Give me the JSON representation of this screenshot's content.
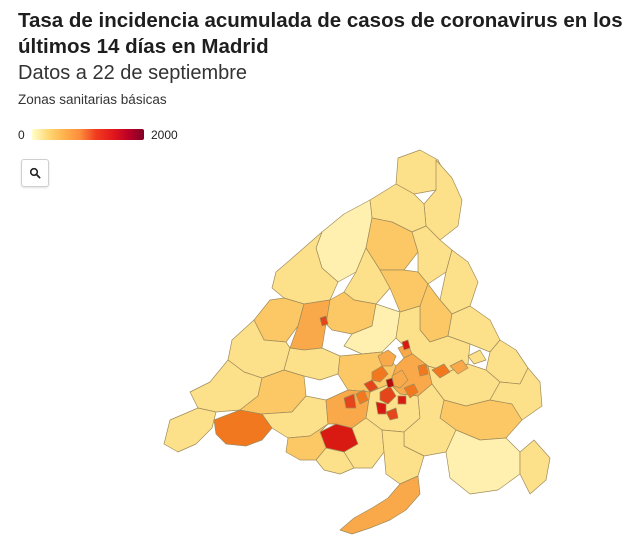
{
  "header": {
    "title": "Tasa de incidencia acumulada de casos de coronavirus en los últimos 14 días en Madrid",
    "subtitle": "Datos a 22 de septiembre",
    "caption": "Zonas sanitarias básicas"
  },
  "legend": {
    "min_label": "0",
    "max_label": "2000",
    "min_value": 0,
    "max_value": 2000,
    "gradient_colors": [
      "#ffffcc",
      "#fed976",
      "#feb24c",
      "#fd8d3c",
      "#f03b20",
      "#e31a1c",
      "#bd0026",
      "#800026"
    ]
  },
  "map": {
    "stroke_color": "#a08c5a",
    "colors": {
      "pale": "#fff0b0",
      "light": "#fde08a",
      "medium": "#fcc865",
      "orange": "#f9a94a",
      "dark_orange": "#f2781f",
      "red_orange": "#e4451a",
      "red": "#d91a12",
      "dark_red": "#b30c0c"
    }
  },
  "controls": {
    "zoom_icon": "search-icon"
  }
}
